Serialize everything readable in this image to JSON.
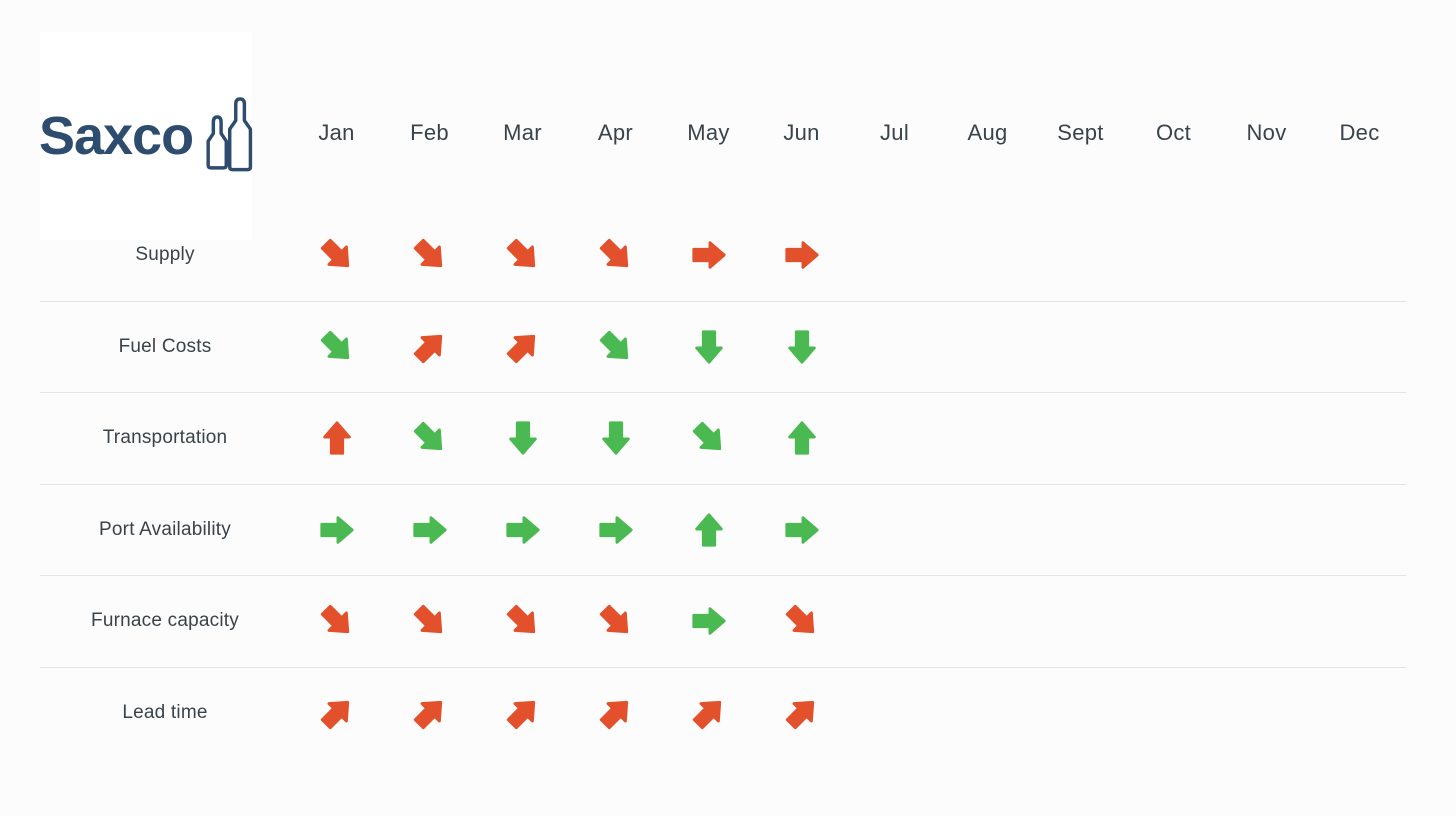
{
  "logo": {
    "brand": "Saxco",
    "icon": "bottles-icon"
  },
  "colors": {
    "red": "#e2502c",
    "green": "#4bb951",
    "navy": "#2e4d6e",
    "text": "#39434a",
    "line": "#e4e4e4",
    "background": "#fcfcfc",
    "logo_background": "#ffffff"
  },
  "chart_data": {
    "type": "table",
    "categories": [
      "Jan",
      "Feb",
      "Mar",
      "Apr",
      "May",
      "Jun",
      "Jul",
      "Aug",
      "Sept",
      "Oct",
      "Nov",
      "Dec"
    ],
    "legend": "arrow direction = monthly trend; red = unfavorable, green = favorable; Jul-Dec cells empty",
    "rows": [
      {
        "label": "Supply",
        "cells": [
          {
            "dir": "down-right",
            "color": "red"
          },
          {
            "dir": "down-right",
            "color": "red"
          },
          {
            "dir": "down-right",
            "color": "red"
          },
          {
            "dir": "down-right",
            "color": "red"
          },
          {
            "dir": "right",
            "color": "red"
          },
          {
            "dir": "right",
            "color": "red"
          }
        ]
      },
      {
        "label": "Fuel Costs",
        "cells": [
          {
            "dir": "down-right",
            "color": "green"
          },
          {
            "dir": "up-right",
            "color": "red"
          },
          {
            "dir": "up-right",
            "color": "red"
          },
          {
            "dir": "down-right",
            "color": "green"
          },
          {
            "dir": "down",
            "color": "green"
          },
          {
            "dir": "down",
            "color": "green"
          }
        ]
      },
      {
        "label": "Transportation",
        "cells": [
          {
            "dir": "up",
            "color": "red"
          },
          {
            "dir": "down-right",
            "color": "green"
          },
          {
            "dir": "down",
            "color": "green"
          },
          {
            "dir": "down",
            "color": "green"
          },
          {
            "dir": "down-right",
            "color": "green"
          },
          {
            "dir": "up",
            "color": "green"
          }
        ]
      },
      {
        "label": "Port Availability",
        "cells": [
          {
            "dir": "right",
            "color": "green"
          },
          {
            "dir": "right",
            "color": "green"
          },
          {
            "dir": "right",
            "color": "green"
          },
          {
            "dir": "right",
            "color": "green"
          },
          {
            "dir": "up",
            "color": "green"
          },
          {
            "dir": "right",
            "color": "green"
          }
        ]
      },
      {
        "label": "Furnace capacity",
        "cells": [
          {
            "dir": "down-right",
            "color": "red"
          },
          {
            "dir": "down-right",
            "color": "red"
          },
          {
            "dir": "down-right",
            "color": "red"
          },
          {
            "dir": "down-right",
            "color": "red"
          },
          {
            "dir": "right",
            "color": "green"
          },
          {
            "dir": "down-right",
            "color": "red"
          }
        ]
      },
      {
        "label": "Lead time",
        "cells": [
          {
            "dir": "up-right",
            "color": "red"
          },
          {
            "dir": "up-right",
            "color": "red"
          },
          {
            "dir": "up-right",
            "color": "red"
          },
          {
            "dir": "up-right",
            "color": "red"
          },
          {
            "dir": "up-right",
            "color": "red"
          },
          {
            "dir": "up-right",
            "color": "red"
          }
        ]
      }
    ]
  }
}
